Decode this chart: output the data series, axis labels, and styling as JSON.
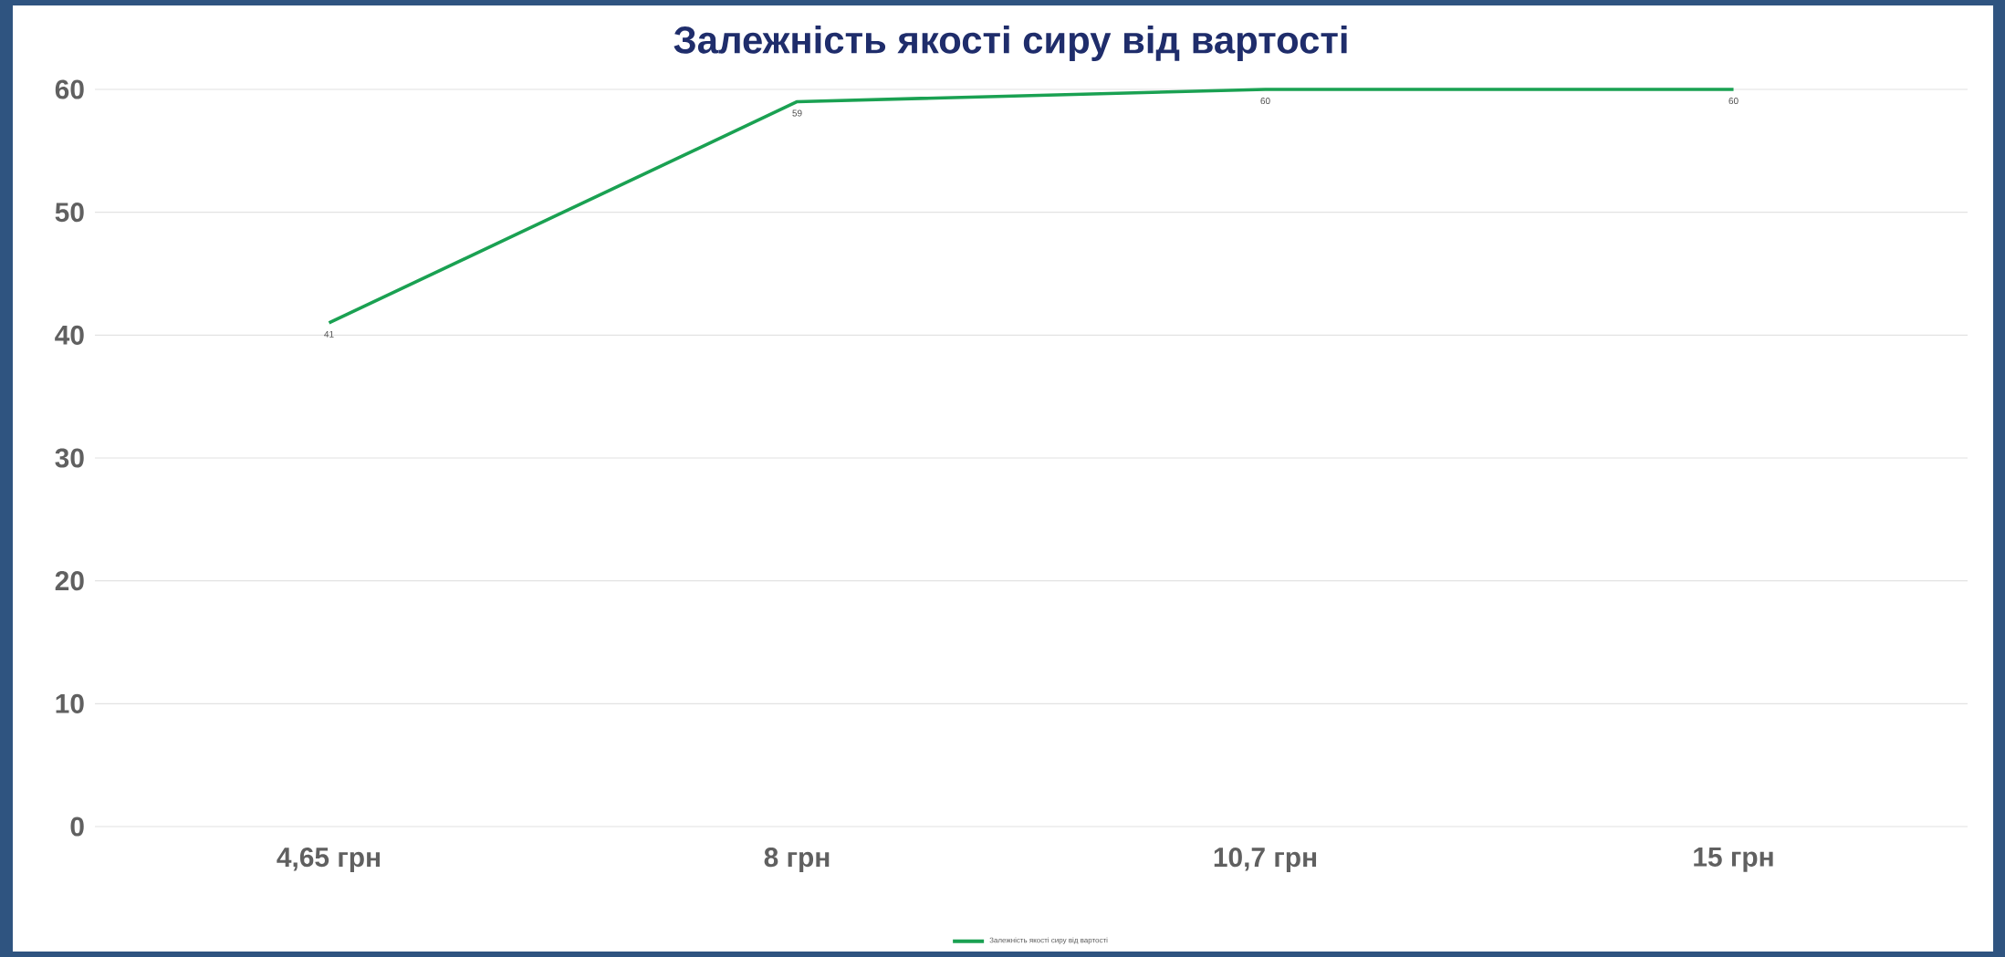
{
  "chart_data": {
    "type": "line",
    "title": "Залежність якості сиру від вартості",
    "categories": [
      "4,65 грн",
      "8 грн",
      "10,7 грн",
      "15 грн"
    ],
    "series": [
      {
        "name": "Залежність якості сиру від вартості",
        "color": "#1aa152",
        "values": [
          41,
          59,
          60,
          60
        ]
      }
    ],
    "ylim": [
      0,
      60
    ],
    "yticks": [
      0,
      10,
      20,
      30,
      40,
      50,
      60
    ],
    "grid": "y",
    "legend": "bottom",
    "data_labels": true
  }
}
